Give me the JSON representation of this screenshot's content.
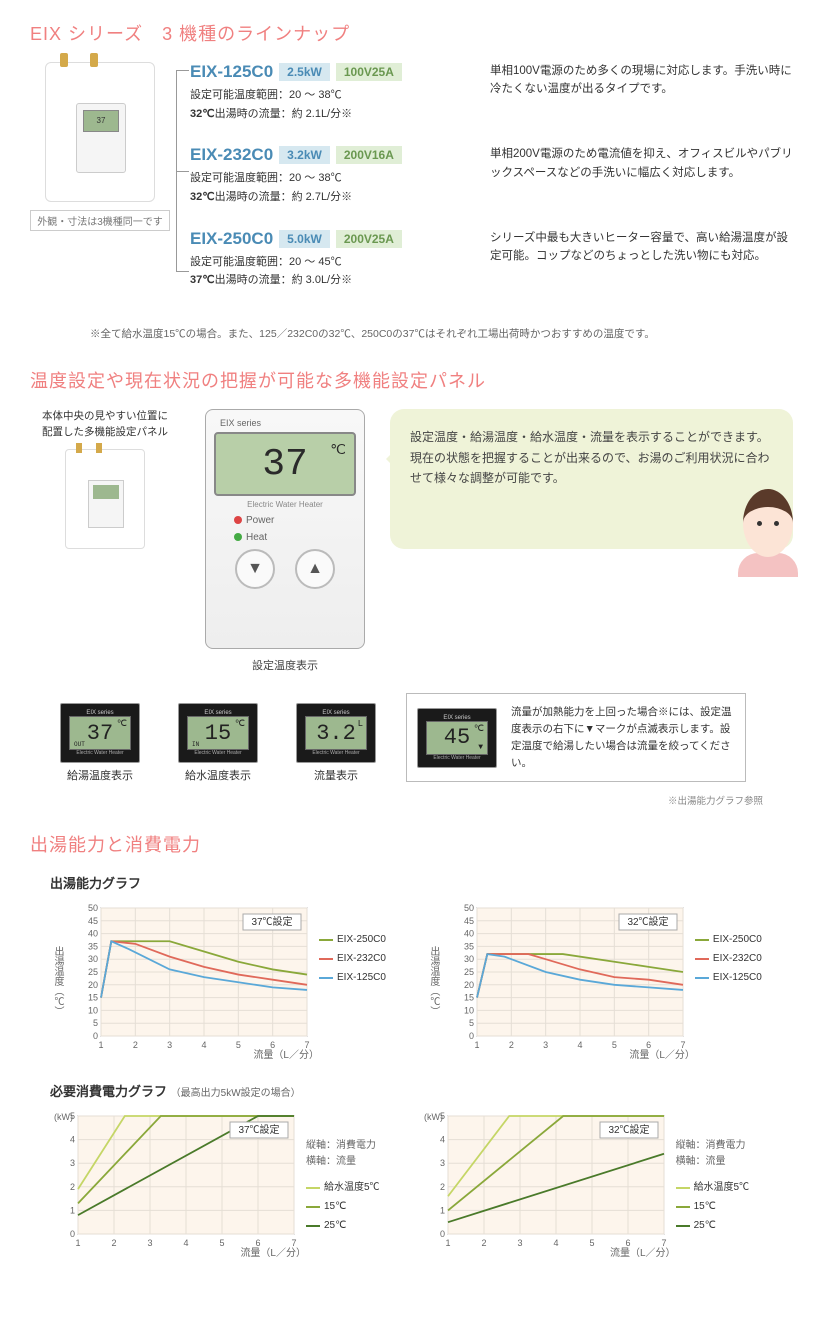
{
  "titles": {
    "lineup": "EIX シリーズ　3 機種のラインナップ",
    "panel": "温度設定や現在状況の把握が可能な多機能設定パネル",
    "power": "出湯能力と消費電力",
    "panel_note": "本体中央の見やすい位置に\n配置した多機能設定パネル",
    "panel_center_label": "設定温度表示"
  },
  "product_note": "外観・寸法は3機種同一です",
  "models": [
    {
      "name": "EIX-125C0",
      "kw": "2.5kW",
      "va": "100V25A",
      "spec1_label": "設定可能温度範囲",
      "spec1_val": "：20 〜 38℃",
      "spec2_label": "32℃",
      "spec2_rest": "出湯時の流量：約 2.1L/分※",
      "desc": "単相100V電源のため多くの現場に対応します。手洗い時に冷たくない温度が出るタイプです。"
    },
    {
      "name": "EIX-232C0",
      "kw": "3.2kW",
      "va": "200V16A",
      "spec1_label": "設定可能温度範囲",
      "spec1_val": "：20 〜 38℃",
      "spec2_label": "32℃",
      "spec2_rest": "出湯時の流量：約 2.7L/分※",
      "desc": "単相200V電源のため電流値を抑え、オフィスビルやパブリックスペースなどの手洗いに幅広く対応します。"
    },
    {
      "name": "EIX-250C0",
      "kw": "5.0kW",
      "va": "200V25A",
      "spec1_label": "設定可能温度範囲",
      "spec1_val": "：20 〜 45℃",
      "spec2_label": "37℃",
      "spec2_rest": "出湯時の流量：約 3.0L/分※",
      "desc": "シリーズ中最も大きいヒーター容量で、高い給湯温度が設定可能。コップなどのちょっとした洗い物にも対応。"
    }
  ],
  "footnote": "※全て給水温度15℃の場合。また、125／232C0の32℃、250C0の37℃はそれぞれ工場出荷時かつおすすめの温度です。",
  "big_panel": {
    "header": "EIX series",
    "display": "37",
    "unit": "℃",
    "sub": "Electric Water Heater",
    "power": "Power",
    "heat": "Heat"
  },
  "speech": "設定温度・給湯温度・給水温度・流量を表示することができます。\n現在の状態を把握することが出来るので、お湯のご利用状況に合わせて様々な調整が可能です。",
  "mini": [
    {
      "val": "37",
      "u": "℃",
      "sub": "OUT",
      "label": "給湯温度表示"
    },
    {
      "val": "15",
      "u": "℃",
      "sub": "IN",
      "label": "給水温度表示"
    },
    {
      "val": "3.2",
      "u": "L",
      "sub": "",
      "label": "流量表示"
    }
  ],
  "info_val": "45",
  "info_u": "℃",
  "info_text": "流量が加熱能力を上回った場合※には、設定温度表示の右下に▼マークが点滅表示します。設定温度で給湯したい場合は流量を絞ってください。",
  "mini_foot": "※出湯能力グラフ参照",
  "chart_section": {
    "sub1": "出湯能力グラフ",
    "sub2": "必要消費電力グラフ",
    "sub2_small": "（最高出力5kW設定の場合）",
    "y1_label": "出湯温度（℃）",
    "y2_label_kw": "(kW)",
    "x_label": "流量（L／分）",
    "axis_info": {
      "v": "縦軸：消費電力",
      "h": "横軸：流量"
    },
    "chart_label_37": "37℃設定",
    "chart_label_32": "32℃設定"
  },
  "chart1": {
    "colors": {
      "s250": "#8aa83a",
      "s232": "#e0695a",
      "s125": "#5aa8d8",
      "grid": "#e5ded5",
      "bg": "#fdf5ec",
      "fg": "#888"
    },
    "xlim": [
      1,
      7
    ],
    "ylim": [
      0,
      50
    ],
    "ytick_step": 5,
    "xtick_step": 1,
    "legend": [
      "EIX-250C0",
      "EIX-232C0",
      "EIX-125C0"
    ],
    "series_37": {
      "s250": [
        [
          1,
          15
        ],
        [
          1.3,
          37
        ],
        [
          3,
          37
        ],
        [
          4,
          33
        ],
        [
          5,
          29
        ],
        [
          6,
          26
        ],
        [
          7,
          24
        ]
      ],
      "s232": [
        [
          1,
          15
        ],
        [
          1.3,
          37
        ],
        [
          2,
          36
        ],
        [
          3,
          31
        ],
        [
          4,
          27
        ],
        [
          5,
          24
        ],
        [
          6,
          22
        ],
        [
          7,
          20
        ]
      ],
      "s125": [
        [
          1,
          15
        ],
        [
          1.3,
          37
        ],
        [
          1.8,
          34
        ],
        [
          3,
          26
        ],
        [
          4,
          23
        ],
        [
          5,
          21
        ],
        [
          6,
          19
        ],
        [
          7,
          18
        ]
      ]
    },
    "series_32": {
      "s250": [
        [
          1,
          15
        ],
        [
          1.3,
          32
        ],
        [
          3.5,
          32
        ],
        [
          5,
          29
        ],
        [
          6,
          27
        ],
        [
          7,
          25
        ]
      ],
      "s232": [
        [
          1,
          15
        ],
        [
          1.3,
          32
        ],
        [
          2.5,
          32
        ],
        [
          3,
          30
        ],
        [
          4,
          26
        ],
        [
          5,
          23
        ],
        [
          6,
          22
        ],
        [
          7,
          20
        ]
      ],
      "s125": [
        [
          1,
          15
        ],
        [
          1.3,
          32
        ],
        [
          1.8,
          31
        ],
        [
          3,
          25
        ],
        [
          4,
          22
        ],
        [
          5,
          20
        ],
        [
          6,
          19
        ],
        [
          7,
          18
        ]
      ]
    }
  },
  "chart2": {
    "colors": {
      "t5": "#c5d666",
      "t15": "#8aa83a",
      "t25": "#4a7a2a",
      "grid": "#e5ded5",
      "bg": "#fdf5ec",
      "fg": "#888"
    },
    "xlim": [
      1,
      7
    ],
    "ylim": [
      0,
      5
    ],
    "ytick_step": 1,
    "xtick_step": 1,
    "legend": [
      "給水温度5℃",
      "15℃",
      "25℃"
    ],
    "series_37": {
      "t5": [
        [
          1,
          1.9
        ],
        [
          2.3,
          5
        ],
        [
          7,
          5
        ]
      ],
      "t15": [
        [
          1,
          1.3
        ],
        [
          3.3,
          5
        ],
        [
          7,
          5
        ]
      ],
      "t25": [
        [
          1,
          0.8
        ],
        [
          6,
          5
        ],
        [
          7,
          5
        ]
      ]
    },
    "series_32": {
      "t5": [
        [
          1,
          1.6
        ],
        [
          2.7,
          5
        ],
        [
          7,
          5
        ]
      ],
      "t15": [
        [
          1,
          1.0
        ],
        [
          4.2,
          5
        ],
        [
          7,
          5
        ]
      ],
      "t25": [
        [
          1,
          0.5
        ],
        [
          7,
          3.4
        ]
      ]
    }
  }
}
